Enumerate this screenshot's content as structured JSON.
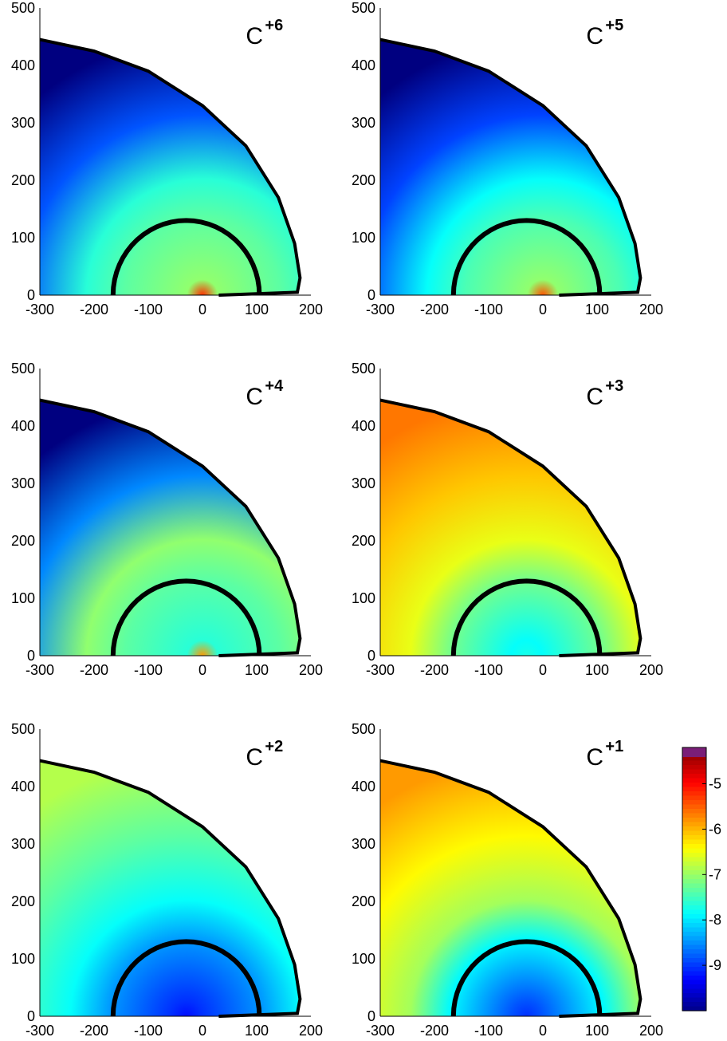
{
  "chart_data": [
    {
      "type": "heatmap",
      "ion_base": "C",
      "ion_charge": "+6",
      "x_ticks": [
        "-300",
        "-200",
        "-100",
        "0",
        "100",
        "200"
      ],
      "y_ticks": [
        "0",
        "100",
        "200",
        "300",
        "400",
        "500"
      ],
      "xlim": [
        -300,
        200
      ],
      "ylim": [
        0,
        500
      ],
      "profile": {
        "center": [
          0,
          0
        ],
        "core_level": -5.2,
        "inner_level": -7.0,
        "ring_level": -7.6,
        "outer_level": -10
      }
    },
    {
      "type": "heatmap",
      "ion_base": "C",
      "ion_charge": "+5",
      "x_ticks": [
        "-300",
        "-200",
        "-100",
        "0",
        "100",
        "200"
      ],
      "y_ticks": [
        "0",
        "100",
        "200",
        "300",
        "400",
        "500"
      ],
      "xlim": [
        -300,
        200
      ],
      "ylim": [
        0,
        500
      ],
      "profile": {
        "center": [
          0,
          0
        ],
        "core_level": -5.4,
        "inner_level": -7.0,
        "ring_level": -7.8,
        "outer_level": -10
      }
    },
    {
      "type": "heatmap",
      "ion_base": "C",
      "ion_charge": "+4",
      "x_ticks": [
        "-300",
        "-200",
        "-100",
        "0",
        "100",
        "200"
      ],
      "y_ticks": [
        "0",
        "100",
        "200",
        "300",
        "400",
        "500"
      ],
      "xlim": [
        -300,
        200
      ],
      "ylim": [
        0,
        500
      ],
      "profile": {
        "center": [
          0,
          0
        ],
        "core_level": -5.8,
        "inner_level": -7.6,
        "ring_level": -7.0,
        "outer_level": -10
      }
    },
    {
      "type": "heatmap",
      "ion_base": "C",
      "ion_charge": "+3",
      "x_ticks": [
        "-300",
        "-200",
        "-100",
        "0",
        "100",
        "200"
      ],
      "y_ticks": [
        "0",
        "100",
        "200",
        "300",
        "400",
        "500"
      ],
      "xlim": [
        -300,
        200
      ],
      "ylim": [
        0,
        500
      ],
      "profile": {
        "center": [
          -30,
          0
        ],
        "core_level": -7.7,
        "inner_level": -7.8,
        "ring_level": -6.5,
        "outer_level": -5.6
      }
    },
    {
      "type": "heatmap",
      "ion_base": "C",
      "ion_charge": "+2",
      "x_ticks": [
        "-300",
        "-200",
        "-100",
        "0",
        "100",
        "200"
      ],
      "y_ticks": [
        "0",
        "100",
        "200",
        "300",
        "400",
        "500"
      ],
      "xlim": [
        -300,
        200
      ],
      "ylim": [
        0,
        500
      ],
      "profile": {
        "center": [
          -30,
          0
        ],
        "core_level": -9.2,
        "inner_level": -9.0,
        "ring_level": -7.8,
        "outer_level": -6.8
      }
    },
    {
      "type": "heatmap",
      "ion_base": "C",
      "ion_charge": "+1",
      "x_ticks": [
        "-300",
        "-200",
        "-100",
        "0",
        "100",
        "200"
      ],
      "y_ticks": [
        "0",
        "100",
        "200",
        "300",
        "400",
        "500"
      ],
      "xlim": [
        -300,
        200
      ],
      "ylim": [
        0,
        500
      ],
      "profile": {
        "center": [
          -30,
          0
        ],
        "core_level": -9.0,
        "inner_level": -8.8,
        "ring_level": -6.9,
        "outer_level": -5.8
      }
    }
  ],
  "colorbar": {
    "ticks": [
      "-5",
      "-6",
      "-7",
      "-8",
      "-9"
    ],
    "tick_values": [
      -5,
      -6,
      -7,
      -8,
      -9
    ],
    "range": [
      -10,
      -4.2
    ]
  },
  "colors": {
    "boundary": "#000000",
    "background": "#ffffff",
    "jet_top": "#7a1e78"
  }
}
